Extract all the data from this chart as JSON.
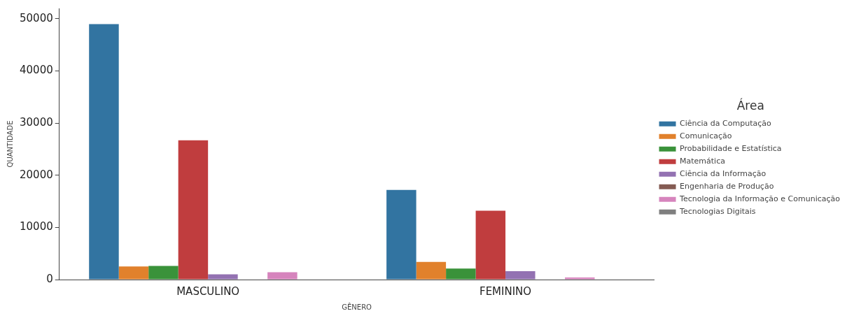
{
  "chart_data": {
    "type": "bar",
    "xlabel": "GÊNERO",
    "ylabel": "QUANTIDADE",
    "legend_title": "Área",
    "legend": "right",
    "categories": [
      "MASCULINO",
      "FEMININO"
    ],
    "ylim": [
      0,
      52000
    ],
    "yticks": [
      0,
      10000,
      20000,
      30000,
      40000,
      50000
    ],
    "grid": false,
    "series": [
      {
        "name": "Ciência da Computação",
        "color": "#3274a1",
        "values": [
          49000,
          17200
        ]
      },
      {
        "name": "Comunicação",
        "color": "#e1812c",
        "values": [
          2500,
          3400
        ]
      },
      {
        "name": "Probabilidade e Estatística",
        "color": "#3a923a",
        "values": [
          2600,
          2100
        ]
      },
      {
        "name": "Matemática",
        "color": "#c03d3e",
        "values": [
          26700,
          13200
        ]
      },
      {
        "name": "Ciência da Informação",
        "color": "#9372b2",
        "values": [
          1000,
          1600
        ]
      },
      {
        "name": "Engenharia de Produção",
        "color": "#845b53",
        "values": [
          0,
          0
        ]
      },
      {
        "name": "Tecnologia da Informação e Comunicação",
        "color": "#d684bd",
        "values": [
          1400,
          400
        ]
      },
      {
        "name": "Tecnologias Digitais",
        "color": "#7f7f7f",
        "values": [
          0,
          0
        ]
      }
    ]
  }
}
